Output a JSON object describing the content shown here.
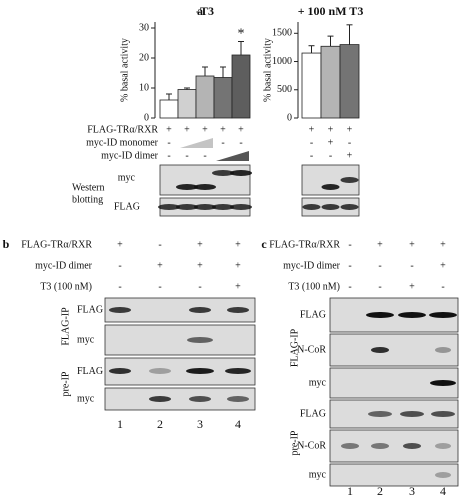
{
  "chart_data": [
    {
      "type": "bar",
      "title": "-T3",
      "y_label": "% basal activity",
      "categories": [
        null,
        null,
        null,
        null,
        null
      ],
      "values": [
        6,
        9.5,
        14,
        13.5,
        21
      ],
      "errors": [
        2,
        0.5,
        3,
        3.5,
        4.5
      ],
      "colors": [
        "#ffffff",
        "#d0d0d0",
        "#b4b4b4",
        "#747474",
        "#5e5e5e"
      ],
      "annotation": "*",
      "ylim": [
        0,
        32
      ],
      "yticks": [
        0,
        10,
        20,
        30
      ],
      "grid": false
    },
    {
      "type": "bar",
      "title": "+ 100 nM T3",
      "y_label": "% basal activity",
      "categories": [
        null,
        null,
        null
      ],
      "values": [
        1150,
        1270,
        1300
      ],
      "errors": [
        130,
        180,
        350
      ],
      "colors": [
        "#ffffff",
        "#b4b4b4",
        "#747474"
      ],
      "ylim": [
        0,
        1700
      ],
      "yticks": [
        0,
        500,
        1000,
        1500
      ],
      "grid": false
    }
  ],
  "panel_labels": [
    "a",
    "b",
    "c"
  ],
  "panel_a": {
    "rows": [
      {
        "label": "FLAG-TRα/RXR",
        "left": [
          "+",
          "+",
          "+",
          "+",
          "+"
        ],
        "right": [
          "+",
          "+",
          "+"
        ]
      },
      {
        "label": "myc-ID monomer",
        "left": [
          "-",
          null,
          null,
          "-",
          "-"
        ],
        "right": [
          "-",
          "+",
          "-"
        ]
      },
      {
        "label": "myc-ID dimer",
        "left": [
          "-",
          "-",
          "-",
          null,
          null
        ],
        "right": [
          "-",
          "-",
          "+"
        ]
      }
    ],
    "blot_labels": [
      "myc",
      "FLAG"
    ],
    "side_label": [
      "Western",
      "blotting"
    ]
  },
  "panel_b": {
    "rows": [
      {
        "label": "FLAG-TRα/RXR",
        "signs": [
          "+",
          "-",
          "+",
          "+"
        ]
      },
      {
        "label": "myc-ID dimer",
        "signs": [
          "-",
          "+",
          "+",
          "+"
        ]
      },
      {
        "label": "T3 (100 nM)",
        "signs": [
          "-",
          "-",
          "-",
          "+"
        ]
      }
    ],
    "groups": [
      {
        "label": "FLAG-IP",
        "rows": [
          "FLAG",
          "myc"
        ]
      },
      {
        "label": "pre-IP",
        "rows": [
          "FLAG",
          "myc"
        ]
      }
    ],
    "lanes": [
      "1",
      "2",
      "3",
      "4"
    ]
  },
  "panel_c": {
    "rows": [
      {
        "label": "FLAG-TRα/RXR",
        "signs": [
          "-",
          "+",
          "+",
          "+"
        ]
      },
      {
        "label": "myc-ID dimer",
        "signs": [
          "-",
          "-",
          "-",
          "+"
        ]
      },
      {
        "label": "T3 (100 nM)",
        "signs": [
          "-",
          "-",
          "+",
          "-"
        ]
      }
    ],
    "groups": [
      {
        "label": "FLAG-IP",
        "rows": [
          "FLAG",
          "N-CoR",
          "myc"
        ]
      },
      {
        "label": "pre-IP",
        "rows": [
          "FLAG",
          "N-CoR",
          "myc"
        ]
      }
    ],
    "lanes": [
      "1",
      "2",
      "3",
      "4"
    ]
  }
}
